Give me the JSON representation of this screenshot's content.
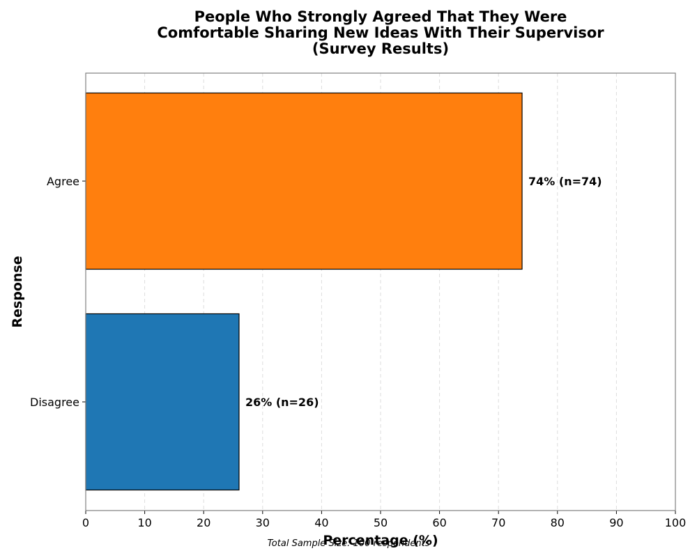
{
  "chart_data": {
    "type": "bar",
    "orientation": "horizontal",
    "title_lines": [
      "People Who Strongly Agreed That They Were",
      "Comfortable Sharing New Ideas With Their Supervisor",
      "(Survey Results)"
    ],
    "xlabel": "Percentage (%)",
    "ylabel": "Response",
    "footnote": "Total Sample Size: 100 respondents",
    "categories": [
      "Agree",
      "Disagree"
    ],
    "values": [
      74,
      26
    ],
    "counts": [
      74,
      26
    ],
    "data_labels": [
      "74% (n=74)",
      "26% (n=26)"
    ],
    "colors": [
      "#ff7f0e",
      "#1f77b4"
    ],
    "xlim": [
      0,
      100
    ],
    "xticks": [
      0,
      10,
      20,
      30,
      40,
      50,
      60,
      70,
      80,
      90,
      100
    ],
    "grid": "vertical-dashed",
    "legend": "none"
  }
}
